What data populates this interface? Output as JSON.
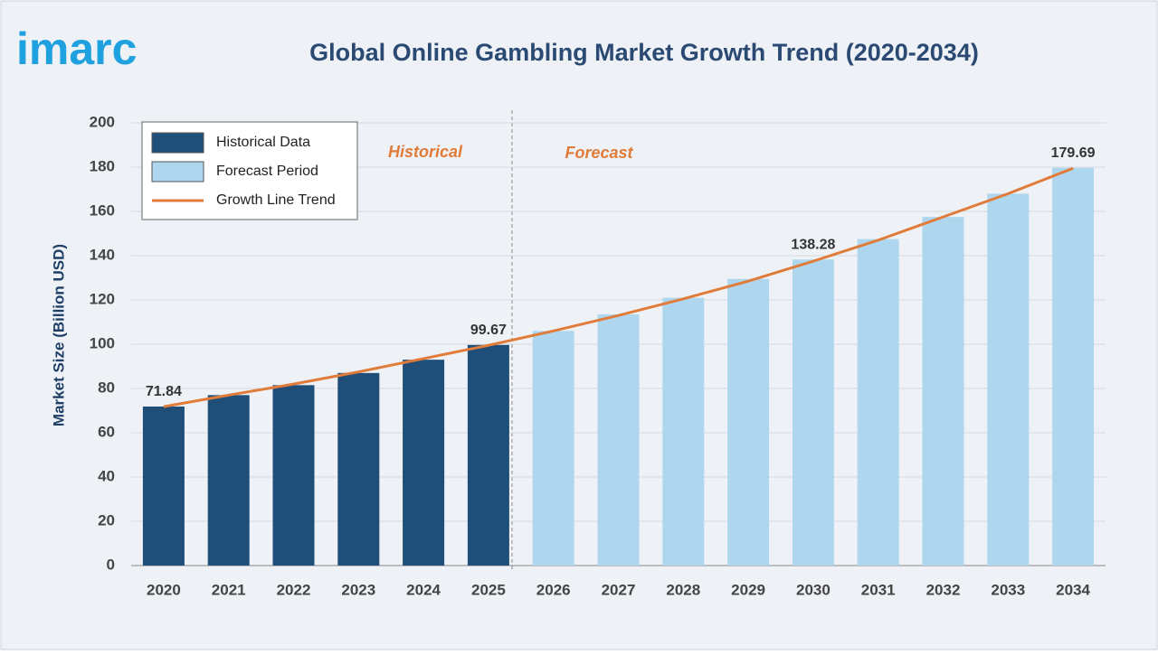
{
  "logo": "imarc",
  "chart_data": {
    "type": "bar",
    "title": "Global Online Gambling Market Growth Trend (2020-2034)",
    "y_label": "Market Size (Billion USD)",
    "annotations": [
      "Historical",
      "Forecast"
    ],
    "categories": [
      "2020",
      "2021",
      "2022",
      "2023",
      "2024",
      "2025",
      "2026",
      "2027",
      "2028",
      "2029",
      "2030",
      "2031",
      "2032",
      "2033",
      "2034"
    ],
    "series": [
      {
        "name": "Historical Data",
        "type": "bar",
        "color": "#1f4e79",
        "values": [
          71.84,
          77,
          81.5,
          87,
          93,
          99.67,
          null,
          null,
          null,
          null,
          null,
          null,
          null,
          null,
          null
        ],
        "value_labels": [
          "71.84",
          null,
          null,
          null,
          null,
          "99.67",
          null,
          null,
          null,
          null,
          null,
          null,
          null,
          null,
          null
        ]
      },
      {
        "name": "Forecast Period",
        "type": "bar",
        "color": "#aed6ef",
        "values": [
          null,
          null,
          null,
          null,
          null,
          null,
          106,
          113.5,
          121,
          129.5,
          138.28,
          147.5,
          157.5,
          168,
          179.69
        ],
        "value_labels": [
          null,
          null,
          null,
          null,
          null,
          null,
          null,
          null,
          null,
          null,
          "138.28",
          null,
          null,
          null,
          "179.69"
        ]
      },
      {
        "name": "Growth Line Trend",
        "type": "line",
        "color": "#e07b39",
        "values": [
          71.8,
          77,
          82,
          87.5,
          93.5,
          99.5,
          106,
          113,
          120.5,
          128.5,
          137.5,
          147,
          157.5,
          168,
          179.5
        ]
      }
    ],
    "ylim": [
      0,
      200
    ],
    "yticks": [
      0,
      20,
      40,
      60,
      80,
      100,
      120,
      140,
      160,
      180,
      200
    ],
    "grid": true,
    "legend": "top-left"
  }
}
